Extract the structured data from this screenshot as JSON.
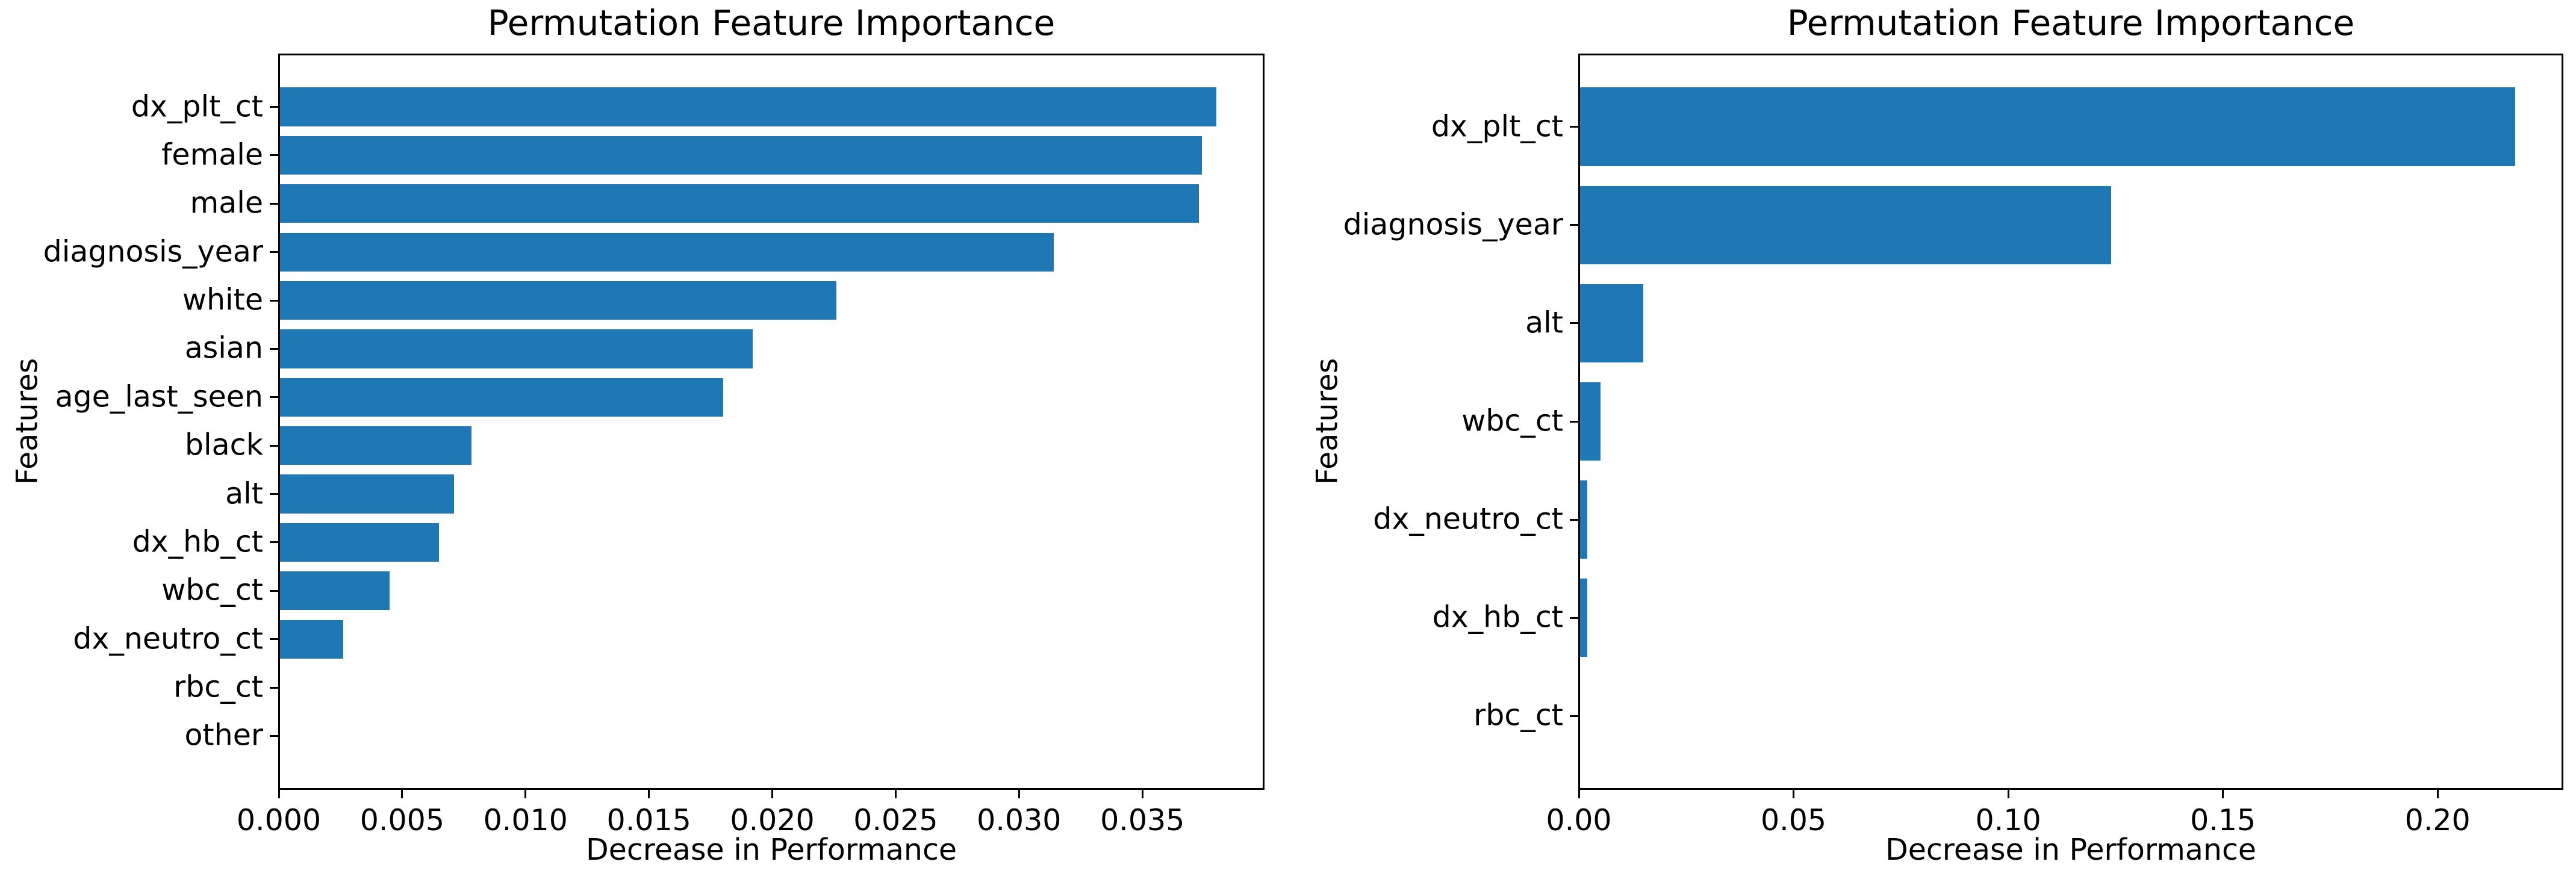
{
  "figure": {
    "background_color": "#ffffff",
    "bar_color": "#1f77b4",
    "axis_color": "#000000",
    "text_color": "#000000"
  },
  "chart_data": [
    {
      "type": "bar",
      "orientation": "horizontal",
      "title": "Permutation Feature Importance",
      "xlabel": "Decrease in Performance",
      "ylabel": "Features",
      "grid": false,
      "legend": null,
      "categories": [
        "dx_plt_ct",
        "female",
        "male",
        "diagnosis_year",
        "white",
        "asian",
        "age_last_seen",
        "black",
        "alt",
        "dx_hb_ct",
        "wbc_ct",
        "dx_neutro_ct",
        "rbc_ct",
        "other"
      ],
      "values": [
        0.038,
        0.0374,
        0.0373,
        0.0314,
        0.0226,
        0.0192,
        0.018,
        0.0078,
        0.0071,
        0.0065,
        0.0045,
        0.0026,
        0.0,
        0.0
      ],
      "xlim": [
        0,
        0.0399
      ],
      "xticks": [
        0.0,
        0.005,
        0.01,
        0.015,
        0.02,
        0.025,
        0.03,
        0.035
      ],
      "xtick_labels": [
        "0.000",
        "0.005",
        "0.010",
        "0.015",
        "0.020",
        "0.025",
        "0.030",
        "0.035"
      ]
    },
    {
      "type": "bar",
      "orientation": "horizontal",
      "title": "Permutation Feature Importance",
      "xlabel": "Decrease in Performance",
      "ylabel": "Features",
      "grid": false,
      "legend": null,
      "categories": [
        "dx_plt_ct",
        "diagnosis_year",
        "alt",
        "wbc_ct",
        "dx_neutro_ct",
        "dx_hb_ct",
        "rbc_ct"
      ],
      "values": [
        0.218,
        0.124,
        0.015,
        0.005,
        0.002,
        0.002,
        0.0
      ],
      "xlim": [
        0,
        0.229
      ],
      "xticks": [
        0.0,
        0.05,
        0.1,
        0.15,
        0.2
      ],
      "xtick_labels": [
        "0.00",
        "0.05",
        "0.10",
        "0.15",
        "0.20"
      ]
    }
  ]
}
